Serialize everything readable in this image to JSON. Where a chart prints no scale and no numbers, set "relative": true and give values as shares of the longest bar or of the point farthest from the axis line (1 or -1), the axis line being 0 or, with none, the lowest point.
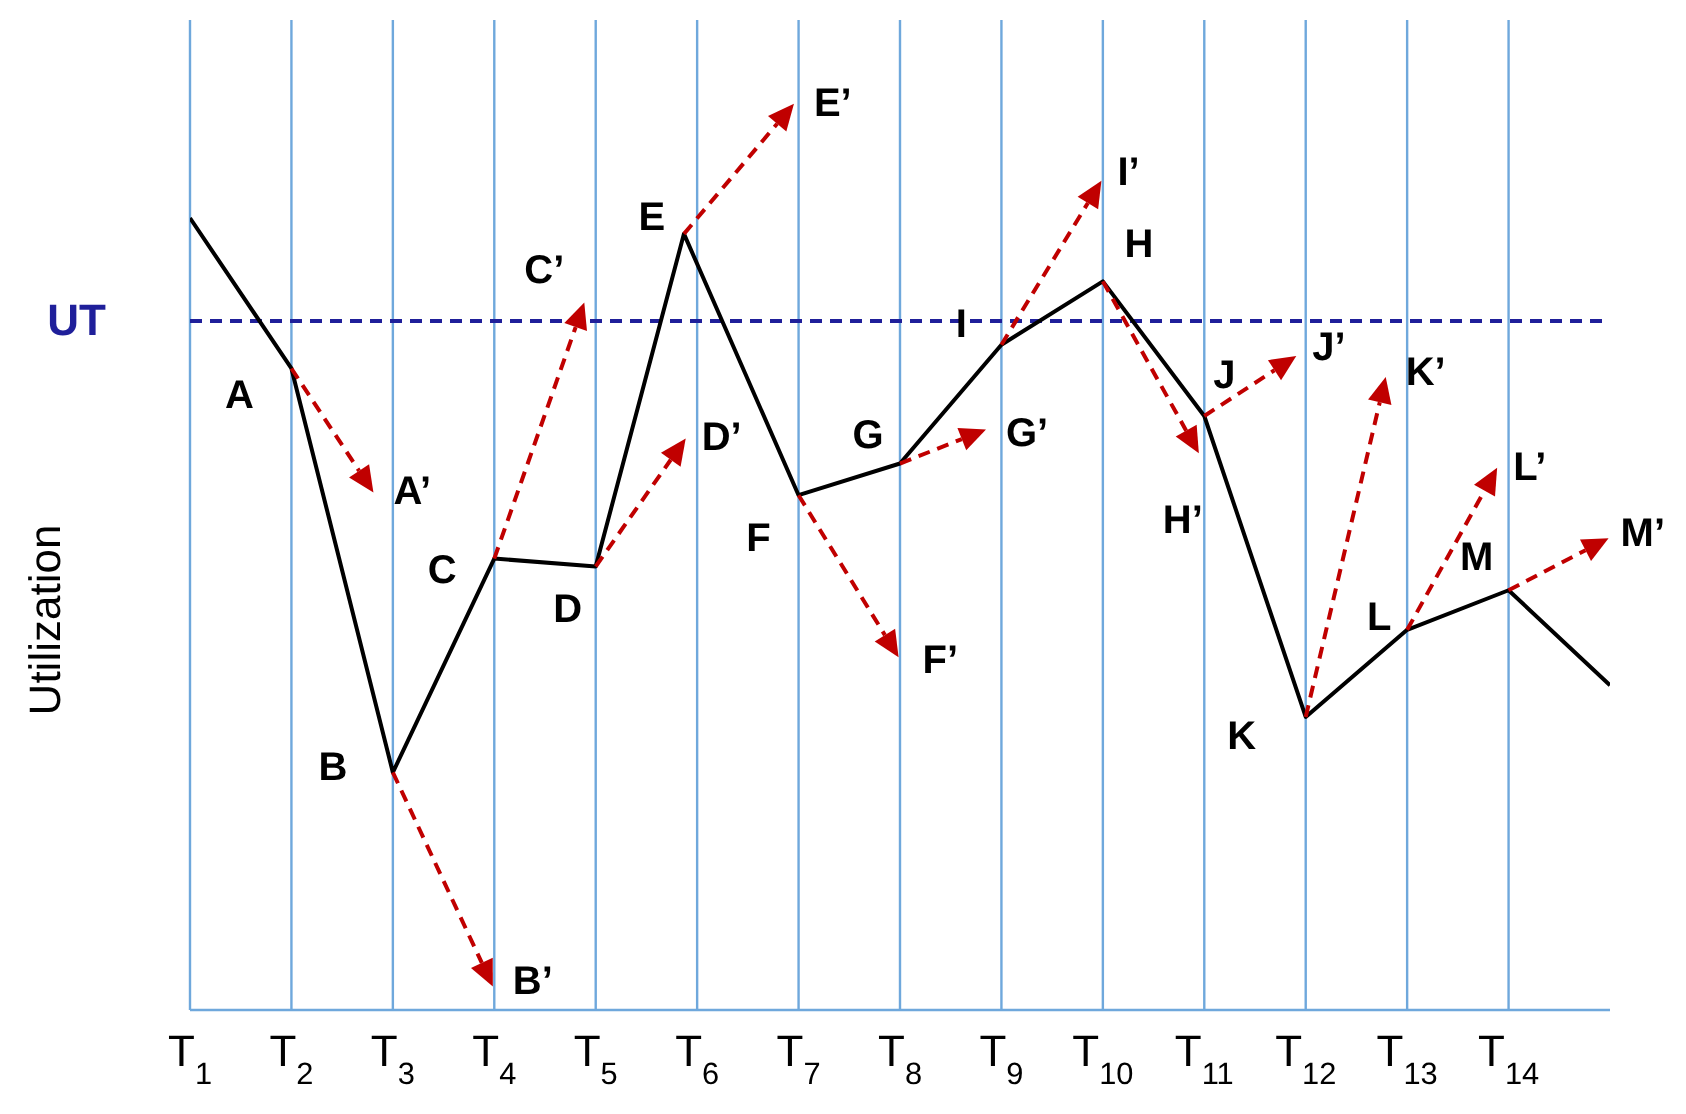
{
  "chart_data": {
    "type": "line",
    "relative": true,
    "ylabel": "Utilization",
    "marker": "none",
    "grid": "x",
    "xlim": [
      1,
      15
    ],
    "xticks": [
      {
        "value": 1,
        "label": "T$_{1}$"
      },
      {
        "value": 2,
        "label": "T$_{2}$"
      },
      {
        "value": 3,
        "label": "T$_{3}$"
      },
      {
        "value": 4,
        "label": "T$_{4}$"
      },
      {
        "value": 5,
        "label": "T$_{5}$"
      },
      {
        "value": 6,
        "label": "T$_{6}$"
      },
      {
        "value": 7,
        "label": "T$_{7}$"
      },
      {
        "value": 8,
        "label": "T$_{8}$"
      },
      {
        "value": 9,
        "label": "T$_{9}$"
      },
      {
        "value": 10,
        "label": "T$_{10}$"
      },
      {
        "value": 11,
        "label": "T$_{11}$"
      },
      {
        "value": 12,
        "label": "T$_{12}$"
      },
      {
        "value": 13,
        "label": "T$_{13}$"
      },
      {
        "value": 14,
        "label": "T$_{14}$"
      }
    ],
    "ref_lines": [
      {
        "axis": "y",
        "value": 0.87,
        "label": "UT",
        "color": "#1f1f9a",
        "line_style": "dashed"
      }
    ],
    "series": [
      {
        "color": "#000000",
        "line_style": "solid",
        "x": [
          1,
          2,
          3,
          4,
          5,
          5.87,
          7,
          8,
          9,
          10,
          11,
          12,
          13,
          14,
          15
        ],
        "values": [
          1,
          0.81,
          0.3,
          0.57,
          0.56,
          0.98,
          0.65,
          0.69,
          0.84,
          0.92,
          0.75,
          0.37,
          0.48,
          0.53,
          0.41
        ]
      }
    ],
    "annotations": [
      {
        "text": "A",
        "x": 2,
        "y": 0.81
      },
      {
        "text": "B",
        "x": 3,
        "y": 0.3
      },
      {
        "text": "C",
        "x": 4,
        "y": 0.57
      },
      {
        "text": "D",
        "x": 5,
        "y": 0.56
      },
      {
        "text": "E",
        "x": 5.87,
        "y": 0.98
      },
      {
        "text": "F",
        "x": 7,
        "y": 0.65
      },
      {
        "text": "G",
        "x": 8,
        "y": 0.69
      },
      {
        "text": "I",
        "x": 9,
        "y": 0.84
      },
      {
        "text": "H",
        "x": 10,
        "y": 0.92
      },
      {
        "text": "J",
        "x": 11,
        "y": 0.75
      },
      {
        "text": "K",
        "x": 12,
        "y": 0.37
      },
      {
        "text": "L",
        "x": 13,
        "y": 0.48
      },
      {
        "text": "M",
        "x": 14,
        "y": 0.53
      },
      "A’",
      "B’",
      "C’",
      "D’",
      "E’",
      "F’",
      "G’",
      "I’",
      "H’",
      "J’",
      "K’",
      "L’",
      "M’"
    ]
  }
}
